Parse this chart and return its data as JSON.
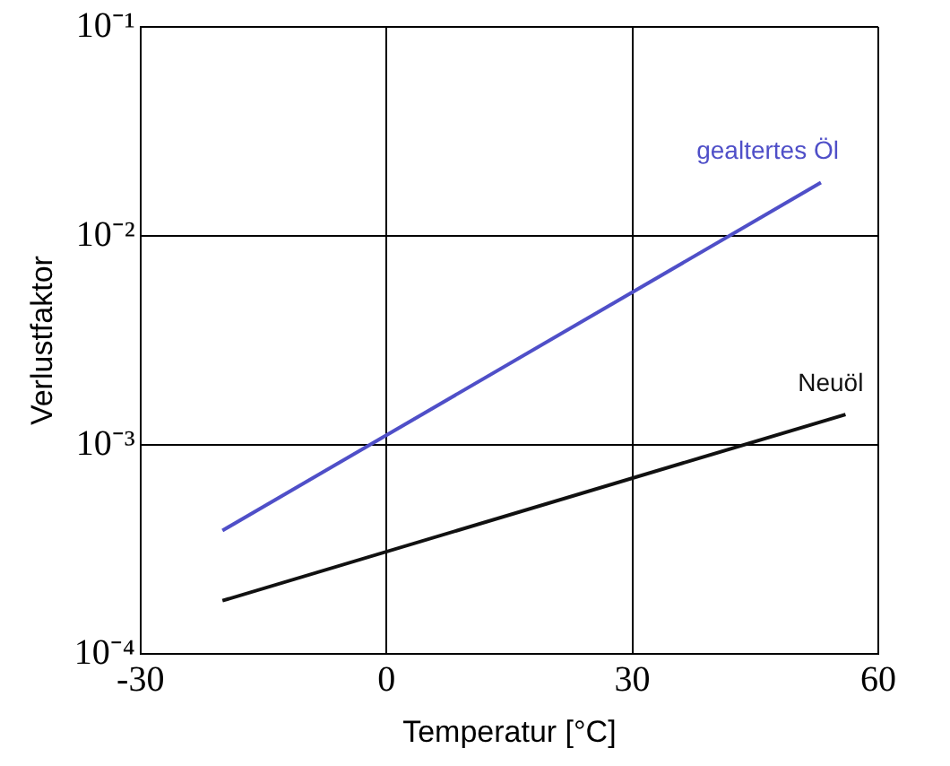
{
  "chart_data": {
    "type": "line",
    "xlabel": "Temperatur [°C]",
    "ylabel": "Verlustfaktor",
    "log": "y",
    "grid": true,
    "legend": false,
    "marker": "none",
    "line_style": "solid",
    "xlim": [
      -30,
      60
    ],
    "xticks": [
      -30,
      0,
      30,
      60
    ],
    "ylim": [
      0.0001,
      0.1
    ],
    "yticks": [
      {
        "value": 0.1,
        "label": "10⁻¹"
      },
      {
        "value": 0.01,
        "label": "10⁻²"
      },
      {
        "value": 0.001,
        "label": "10⁻³"
      },
      {
        "value": 0.0001,
        "label": "10⁻⁴"
      }
    ],
    "series": [
      {
        "name": "gealtertes Öl",
        "color": "#4f4fc8",
        "x": [
          -20,
          53
        ],
        "values": [
          0.00039,
          0.018
        ]
      },
      {
        "name": "Neuöl",
        "color": "#111111",
        "x": [
          -20,
          56
        ],
        "values": [
          0.00018,
          0.0014
        ]
      }
    ]
  }
}
